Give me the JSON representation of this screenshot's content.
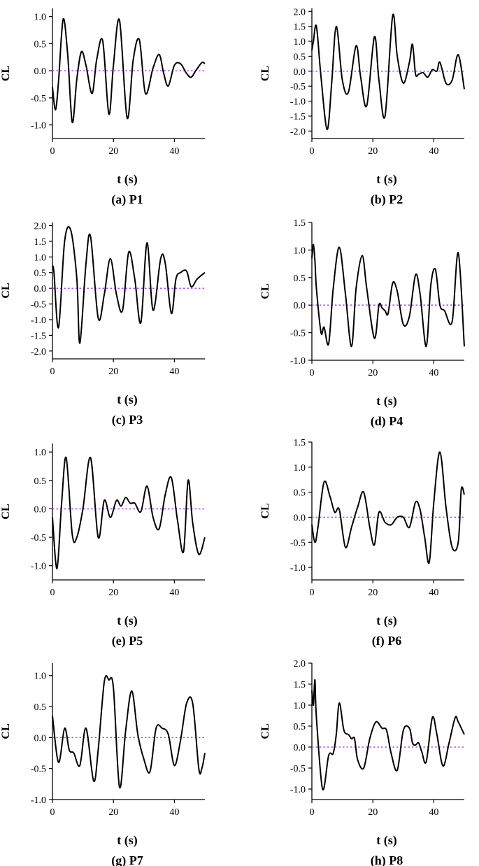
{
  "figure": {
    "colors": {
      "curve": "#000000",
      "zero_line": "#a855f7",
      "axis": "#000000"
    },
    "zero_line_style": "dotted"
  },
  "chart_data": [
    {
      "type": "line",
      "panel": "(a) P1",
      "caption": "(a) P1",
      "xlabel": "t (s)",
      "ylabel": "CL",
      "xlim": [
        0,
        50
      ],
      "ylim": [
        -1.25,
        1.15
      ],
      "xticks": [
        0,
        20,
        40
      ],
      "yticks": [
        -1.0,
        -0.5,
        0.0,
        0.5,
        1.0
      ],
      "ytick_labels": [
        "-1.0",
        "-0.5",
        "0.0",
        "0.5",
        "1.0"
      ],
      "series": [
        {
          "x": [
            0,
            1,
            2,
            3.5,
            5,
            6.5,
            8,
            9.5,
            11,
            13,
            14.5,
            16.5,
            18.5,
            20,
            22,
            24.5,
            26.5,
            28.5,
            30.5,
            33,
            35,
            36.5,
            38,
            40,
            42,
            44,
            45.5,
            47,
            49,
            50
          ],
          "y": [
            -0.3,
            -0.72,
            -0.2,
            0.95,
            0.3,
            -0.95,
            -0.15,
            0.35,
            0.1,
            -0.42,
            0.2,
            0.55,
            -0.8,
            0.1,
            0.93,
            -0.87,
            0.2,
            0.57,
            -0.42,
            0.05,
            0.3,
            -0.05,
            -0.28,
            0.1,
            0.13,
            -0.05,
            -0.12,
            0,
            0.15,
            0.13
          ]
        }
      ]
    },
    {
      "type": "line",
      "panel": "(b) P2",
      "caption": "(b) P2",
      "xlabel": "t (s)",
      "ylabel": "CL",
      "xlim": [
        0,
        50
      ],
      "ylim": [
        -2.25,
        2.1
      ],
      "xticks": [
        0,
        20,
        40
      ],
      "yticks": [
        -2.0,
        -1.5,
        -1.0,
        -0.5,
        0.0,
        0.5,
        1.0,
        1.5,
        2.0
      ],
      "ytick_labels": [
        "-2.0",
        "-1.5",
        "-1.0",
        "-0.5",
        "0.0",
        "0.5",
        "1.0",
        "1.5",
        "2.0"
      ],
      "series": [
        {
          "x": [
            0,
            0.5,
            1.5,
            3,
            5,
            6.5,
            8,
            10,
            12,
            14.5,
            16,
            18,
            20.5,
            22,
            24,
            26.5,
            28,
            30,
            32,
            33,
            34,
            35,
            36.5,
            38,
            39.5,
            41,
            42,
            44,
            46,
            48,
            50
          ],
          "y": [
            0.7,
            1.0,
            1.5,
            -0.2,
            -1.95,
            -0.4,
            1.5,
            -0.3,
            -0.7,
            0.85,
            -0.2,
            -1.15,
            1.15,
            -0.3,
            -1.5,
            1.85,
            0.5,
            -0.4,
            0.3,
            0.9,
            -0.1,
            -0.1,
            -0.05,
            -0.2,
            0.05,
            0,
            0.3,
            -0.4,
            -0.3,
            0.55,
            -0.6
          ]
        }
      ]
    },
    {
      "type": "line",
      "panel": "(c) P3",
      "caption": "(c) P3",
      "xlabel": "t (s)",
      "ylabel": "CL",
      "xlim": [
        0,
        50
      ],
      "ylim": [
        -2.25,
        2.1
      ],
      "xticks": [
        0,
        20,
        40
      ],
      "yticks": [
        -2.0,
        -1.5,
        -1.0,
        -0.5,
        0.0,
        0.5,
        1.0,
        1.5,
        2.0
      ],
      "ytick_labels": [
        "-2.0",
        "-1.5",
        "-1.0",
        "-0.5",
        "0.0",
        "0.5",
        "1.0",
        "1.5",
        "2.0"
      ],
      "series": [
        {
          "x": [
            0,
            0.5,
            2,
            4,
            6,
            8,
            9,
            11,
            12.5,
            15,
            17,
            19,
            21,
            23,
            25,
            27,
            29,
            31,
            33,
            35.5,
            37,
            39,
            40.5,
            42,
            44,
            45.5,
            47.5,
            50
          ],
          "y": [
            0.7,
            0.5,
            -1.25,
            1.5,
            1.85,
            0.3,
            -1.75,
            0.8,
            1.65,
            -0.95,
            -0.2,
            0.95,
            -0.2,
            -0.7,
            1.15,
            0.3,
            -1.1,
            1.45,
            -0.7,
            0.95,
            0.8,
            -0.8,
            0.3,
            0.5,
            0.55,
            0.05,
            0.3,
            0.5
          ]
        }
      ]
    },
    {
      "type": "line",
      "panel": "(d) P4",
      "caption": "(d) P4",
      "xlabel": "t (s)",
      "ylabel": "CL",
      "xlim": [
        0,
        50
      ],
      "ylim": [
        -1.0,
        1.5
      ],
      "xticks": [
        0,
        20,
        40
      ],
      "yticks": [
        -1.0,
        -0.5,
        0.0,
        0.5,
        1.0,
        1.5
      ],
      "ytick_labels": [
        "-1.0",
        "-0.5",
        "0.0",
        "0.5",
        "1.0",
        "1.5"
      ],
      "series": [
        {
          "x": [
            0,
            0.5,
            1,
            1.5,
            3,
            4,
            5.5,
            7,
            9,
            11,
            13,
            14.5,
            16.5,
            18,
            20.5,
            22,
            23,
            24,
            25,
            26.5,
            28,
            30,
            32,
            34,
            35.5,
            37.5,
            39,
            40.5,
            42,
            43.5,
            46,
            48,
            50
          ],
          "y": [
            0.85,
            1.1,
            0.8,
            0.3,
            -0.5,
            -0.4,
            -0.7,
            0.3,
            1.05,
            0.2,
            -0.75,
            0.3,
            0.9,
            0.3,
            -0.6,
            0,
            -0.05,
            -0.1,
            -0.15,
            0.4,
            0.25,
            -0.35,
            -0.2,
            0.55,
            0.2,
            -0.75,
            0.35,
            0.65,
            0,
            -0.1,
            -0.3,
            0.95,
            -0.75
          ]
        }
      ]
    },
    {
      "type": "line",
      "panel": "(e) P5",
      "caption": "(e) P5",
      "xlabel": "t (s)",
      "ylabel": "CL",
      "xlim": [
        0,
        50
      ],
      "ylim": [
        -1.25,
        1.15
      ],
      "xticks": [
        0,
        20,
        40
      ],
      "yticks": [
        -1.0,
        -0.5,
        0.0,
        0.5,
        1.0
      ],
      "ytick_labels": [
        "-1.0",
        "-0.5",
        "0.0",
        "0.5",
        "1.0"
      ],
      "series": [
        {
          "x": [
            0,
            1.5,
            3,
            4.5,
            6.5,
            8,
            10,
            12.5,
            15,
            17,
            19,
            21,
            22.5,
            24,
            25.5,
            27,
            29,
            31,
            33,
            35,
            37,
            39,
            41,
            43,
            44.5,
            46,
            48,
            50
          ],
          "y": [
            -0.15,
            -1.05,
            0.1,
            0.9,
            -0.45,
            -0.5,
            0,
            0.9,
            -0.5,
            0.15,
            -0.15,
            0.15,
            0.05,
            0.2,
            0.1,
            0.1,
            -0.05,
            0.4,
            -0.15,
            -0.35,
            0.25,
            0.55,
            -0.2,
            -0.75,
            0.5,
            -0.25,
            -0.8,
            -0.5
          ]
        }
      ]
    },
    {
      "type": "line",
      "panel": "(f) P6",
      "caption": "(f) P6",
      "xlabel": "t (s)",
      "ylabel": "CL",
      "xlim": [
        0,
        50
      ],
      "ylim": [
        -1.25,
        1.5
      ],
      "xticks": [
        0,
        20,
        40
      ],
      "yticks": [
        -1.0,
        -0.5,
        0.0,
        0.5,
        1.0,
        1.5
      ],
      "ytick_labels": [
        "-1.0",
        "-0.5",
        "0.0",
        "0.5",
        "1.0",
        "1.5"
      ],
      "series": [
        {
          "x": [
            0,
            1,
            2,
            4,
            6,
            7.5,
            9,
            11,
            13,
            15,
            17,
            19,
            20.5,
            22,
            24,
            26,
            28,
            30,
            32,
            34,
            35.5,
            37,
            38.5,
            40,
            42,
            44,
            46,
            48,
            49,
            50
          ],
          "y": [
            -0.15,
            -0.5,
            -0.2,
            0.7,
            0.4,
            0.1,
            0.15,
            -0.6,
            -0.2,
            0.2,
            0.5,
            -0.2,
            -0.55,
            0.1,
            -0.1,
            -0.15,
            0,
            0,
            -0.2,
            0.3,
            0.15,
            -0.4,
            -0.9,
            0.3,
            1.3,
            0.2,
            -0.6,
            -0.5,
            0.55,
            0.45
          ]
        }
      ]
    },
    {
      "type": "line",
      "panel": "(g) P7",
      "caption": "(g) P7",
      "xlabel": "t (s)",
      "ylabel": "CL",
      "xlim": [
        0,
        50
      ],
      "ylim": [
        -1.0,
        1.2
      ],
      "xticks": [
        0,
        20,
        40
      ],
      "yticks": [
        -1.0,
        -0.5,
        0.0,
        0.5,
        1.0
      ],
      "ytick_labels": [
        "-1.0",
        "-0.5",
        "0.0",
        "0.5",
        "1.0"
      ],
      "series": [
        {
          "x": [
            0,
            2,
            4,
            5.5,
            7,
            9,
            11,
            13.5,
            15,
            17,
            18.5,
            20,
            22,
            24,
            26,
            28,
            30,
            32,
            34,
            36,
            38,
            40,
            42,
            44,
            46,
            48,
            49,
            50
          ],
          "y": [
            0.35,
            -0.4,
            0.15,
            -0.2,
            -0.25,
            -0.45,
            0.15,
            -0.7,
            -0.2,
            0.9,
            0.93,
            0.8,
            -0.8,
            0.1,
            0.75,
            0.05,
            -0.35,
            -0.55,
            0.15,
            0.15,
            0.05,
            -0.45,
            -0.05,
            0.55,
            0.55,
            -0.5,
            -0.5,
            -0.25
          ]
        }
      ]
    },
    {
      "type": "line",
      "panel": "(h) P8",
      "caption": "(h) P8",
      "xlabel": "t (s)",
      "ylabel": "CL",
      "xlim": [
        0,
        50
      ],
      "ylim": [
        -1.25,
        2.0
      ],
      "xticks": [
        0,
        20,
        40
      ],
      "yticks": [
        -1.0,
        -0.5,
        0.0,
        0.5,
        1.0,
        1.5,
        2.0
      ],
      "ytick_labels": [
        "-1.0",
        "-0.5",
        "0.0",
        "0.5",
        "1.0",
        "1.5",
        "2.0"
      ],
      "series": [
        {
          "x": [
            0,
            0.5,
            1,
            1.5,
            3.5,
            5.5,
            7,
            8,
            9,
            10.5,
            12,
            13,
            14,
            15,
            17,
            19,
            21,
            23,
            24.5,
            26,
            28,
            30,
            32,
            33,
            34,
            35,
            36,
            37.5,
            39.5,
            41,
            43,
            45,
            47,
            48,
            50
          ],
          "y": [
            1.35,
            1.0,
            1.6,
            0.7,
            -1.0,
            -0.2,
            -0.15,
            0.3,
            1.05,
            0.4,
            0.3,
            0.2,
            0.2,
            -0.3,
            -0.5,
            0.2,
            0.6,
            0.45,
            0.4,
            -0.15,
            -0.55,
            0.4,
            0.45,
            0.1,
            0.05,
            0.1,
            -0.1,
            -0.35,
            0.7,
            0.3,
            -0.45,
            0.1,
            0.7,
            0.6,
            0.3
          ]
        }
      ]
    }
  ]
}
